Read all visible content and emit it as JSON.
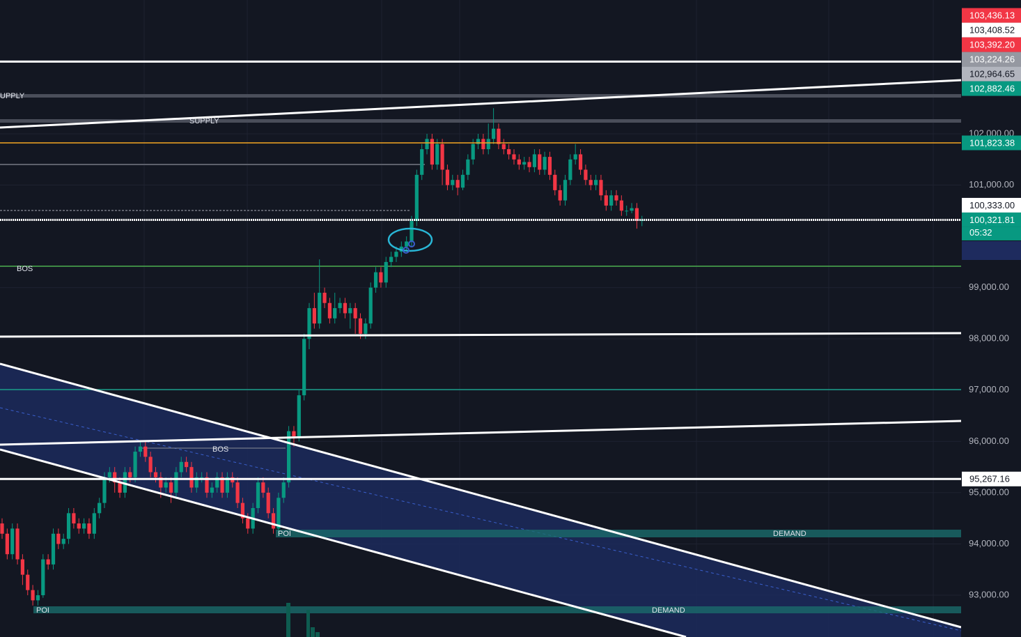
{
  "chart_data": {
    "type": "candlestick",
    "open": [
      94400,
      94200,
      93800,
      94300,
      93700,
      93400,
      93100,
      92900,
      93000,
      93700,
      93600,
      94200,
      94000,
      94100,
      94600,
      94400,
      94300,
      94400,
      94200,
      94600,
      94800,
      95300,
      95400,
      95200,
      95000,
      95400,
      95300,
      95800,
      95900,
      95700,
      95400,
      95300,
      95100,
      95200,
      95000,
      95400,
      95600,
      95500,
      95100,
      95300,
      95300,
      95000,
      95100,
      95300,
      95000,
      95300,
      95200,
      94800,
      94500,
      94300,
      94700,
      95200,
      95000,
      94600,
      94300,
      94900,
      95200,
      96200,
      96100,
      96900,
      98000,
      98600,
      98300,
      98900,
      98700,
      98400,
      98600,
      98700,
      98500,
      98600,
      98400,
      98100,
      98300,
      99000,
      99300,
      99100,
      99500,
      99600,
      99700,
      99800,
      99900,
      100300,
      101200,
      101700,
      101900,
      101400,
      101800,
      101300,
      101000,
      101100,
      100950,
      101200,
      101500,
      101800,
      101900,
      101700,
      101900,
      102100,
      101800,
      101700,
      101600,
      101500,
      101400,
      101450,
      101350,
      101600,
      101300,
      101550,
      101200,
      100900,
      100700,
      101100,
      101500,
      101600,
      101300,
      101100,
      101000,
      101100,
      100800,
      100600,
      100800,
      100700,
      100500,
      100500,
      100550,
      100300
    ],
    "high": [
      94500,
      94300,
      94400,
      94400,
      93800,
      93500,
      93200,
      93100,
      93800,
      93800,
      94300,
      94300,
      94200,
      94700,
      94700,
      94500,
      94500,
      94500,
      94700,
      94900,
      95400,
      95500,
      95500,
      95300,
      95500,
      95500,
      95900,
      96000,
      96000,
      95800,
      95500,
      95400,
      95300,
      95300,
      95500,
      95700,
      95700,
      95600,
      95400,
      95400,
      95400,
      95200,
      95400,
      95400,
      95400,
      95400,
      95300,
      94900,
      94600,
      94800,
      95300,
      95300,
      95100,
      94700,
      95000,
      95300,
      96300,
      96300,
      97000,
      98100,
      98700,
      98900,
      99550,
      99000,
      98800,
      98900,
      98800,
      98800,
      98700,
      98700,
      98500,
      98400,
      99100,
      99400,
      99400,
      99600,
      99700,
      99800,
      99900,
      100000,
      100400,
      101300,
      101800,
      102000,
      102000,
      101900,
      101900,
      101400,
      101200,
      101200,
      101300,
      101600,
      101900,
      102000,
      102000,
      102200,
      102500,
      102200,
      101900,
      101800,
      101700,
      101600,
      101550,
      101550,
      101700,
      101700,
      101650,
      101650,
      101300,
      101000,
      101200,
      101600,
      101800,
      101700,
      101400,
      101200,
      101200,
      101200,
      100900,
      100900,
      100900,
      100800,
      100600,
      100650,
      100650,
      100400
    ],
    "low": [
      94100,
      93700,
      93700,
      93600,
      93200,
      93000,
      92800,
      92800,
      92950,
      93500,
      93500,
      93900,
      93900,
      94000,
      94300,
      94200,
      94200,
      94100,
      94100,
      94500,
      94700,
      95200,
      95000,
      94900,
      94900,
      95200,
      95200,
      95700,
      95600,
      95300,
      95200,
      94900,
      95000,
      94800,
      94900,
      95300,
      95400,
      95000,
      95000,
      95200,
      94900,
      94900,
      95000,
      94900,
      94900,
      95100,
      94700,
      94400,
      94200,
      94200,
      94600,
      94900,
      94500,
      94200,
      94200,
      94800,
      95100,
      95900,
      96000,
      96800,
      97800,
      98200,
      98200,
      98600,
      98300,
      98300,
      98500,
      98400,
      98200,
      98100,
      98000,
      98000,
      98200,
      98900,
      99000,
      99000,
      99400,
      99500,
      99600,
      99700,
      99800,
      100200,
      101100,
      101600,
      101300,
      101300,
      101000,
      100900,
      100900,
      100800,
      100900,
      101100,
      101400,
      101700,
      101600,
      101600,
      101800,
      101700,
      101600,
      101500,
      101400,
      101300,
      101300,
      101250,
      101250,
      101200,
      101200,
      101100,
      100800,
      100600,
      100600,
      101000,
      101400,
      101200,
      101000,
      100900,
      100900,
      100700,
      100500,
      100500,
      100600,
      100400,
      100400,
      100450,
      100150,
      100200
    ],
    "close": [
      94200,
      93800,
      94300,
      93700,
      93400,
      93100,
      92900,
      93000,
      93700,
      93600,
      94200,
      94000,
      94100,
      94600,
      94400,
      94300,
      94400,
      94200,
      94600,
      94800,
      95300,
      95400,
      95200,
      95000,
      95400,
      95300,
      95800,
      95900,
      95700,
      95400,
      95300,
      95100,
      95200,
      95000,
      95400,
      95600,
      95500,
      95100,
      95300,
      95300,
      95000,
      95100,
      95300,
      95000,
      95300,
      95200,
      94800,
      94500,
      94300,
      94700,
      95200,
      95000,
      94600,
      94300,
      94900,
      95200,
      96200,
      96100,
      96900,
      98000,
      98600,
      98300,
      98900,
      98700,
      98400,
      98600,
      98700,
      98500,
      98600,
      98400,
      98100,
      98300,
      99000,
      99300,
      99100,
      99500,
      99600,
      99700,
      99800,
      99900,
      100300,
      101200,
      101700,
      101900,
      101400,
      101800,
      101300,
      101000,
      101100,
      100950,
      101200,
      101500,
      101800,
      101900,
      101700,
      101900,
      102100,
      101800,
      101700,
      101600,
      101500,
      101400,
      101450,
      101350,
      101600,
      101300,
      101550,
      101200,
      100900,
      100700,
      101100,
      101500,
      101600,
      101300,
      101100,
      101000,
      101100,
      100800,
      100600,
      100800,
      100700,
      100500,
      100500,
      100550,
      100300,
      100321.81
    ],
    "up_color": "#089981",
    "down_color": "#f23645",
    "ylim": [
      92185,
      104610
    ],
    "yticks": [
      {
        "value": 93000,
        "label": "93,000.00"
      },
      {
        "value": 94000,
        "label": "94,000.00"
      },
      {
        "value": 95000,
        "label": "95,000.00"
      },
      {
        "value": 96000,
        "label": "96,000.00"
      },
      {
        "value": 97000,
        "label": "97,000.00"
      },
      {
        "value": 98000,
        "label": "98,000.00"
      },
      {
        "value": 99000,
        "label": "99,000.00"
      },
      {
        "value": 101000,
        "label": "101,000.00"
      },
      {
        "value": 102000,
        "label": "102,000.00"
      }
    ],
    "price_tags": [
      {
        "value": 103436.13,
        "label": "103,436.13",
        "color": "#f23645",
        "text_color": "#ffffff"
      },
      {
        "value": 103408.52,
        "label": "103,408.52",
        "color": "#ffffff",
        "text_color": "#131722",
        "line": "#ffffff"
      },
      {
        "value": 103392.2,
        "label": "103,392.20",
        "color": "#f23645",
        "text_color": "#ffffff"
      },
      {
        "value": 103224.26,
        "label": "103,224.26",
        "color": "#9598a1",
        "text_color": "#ffffff"
      },
      {
        "value": 102964.65,
        "label": "102,964.65",
        "color": "#b2b5be",
        "text_color": "#131722"
      },
      {
        "value": 102882.46,
        "label": "102,882.46",
        "color": "#089981",
        "text_color": "#ffffff"
      },
      {
        "value": 101823.38,
        "label": "101,823.38",
        "color": "#089981",
        "text_color": "#ffffff",
        "line": "#f5a623"
      },
      {
        "value": 100333.0,
        "label": "100,333.00",
        "color": "#ffffff",
        "text_color": "#131722"
      },
      {
        "value": 100321.81,
        "label": "100,321.81",
        "color": "#089981",
        "text_color": "#ffffff",
        "line": "#ffffff"
      },
      {
        "value": 95267.16,
        "label": "95,267.16",
        "color": "#ffffff",
        "text_color": "#131722",
        "line": "#ffffff"
      }
    ],
    "countdown": "05:32",
    "annotations": [
      "UPPLY",
      "SUPPLY",
      "BOS",
      "BOS",
      "POI",
      "DEMAND",
      "POI",
      "DEMAND"
    ]
  }
}
